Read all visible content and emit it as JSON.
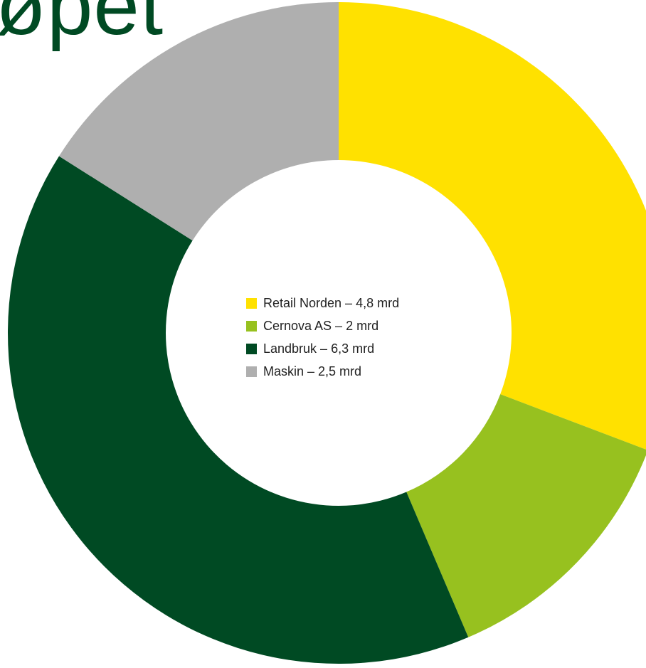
{
  "page": {
    "title_fragment": "øpet"
  },
  "chart_data": {
    "type": "pie",
    "style": "donut",
    "title": "",
    "unit": "mrd",
    "labels": [
      "Retail Norden",
      "Cernova AS",
      "Landbruk",
      "Maskin"
    ],
    "values": [
      4.8,
      2,
      6.3,
      2.5
    ],
    "colors": [
      "#ffe100",
      "#97c11f",
      "#004a23",
      "#afafaf"
    ],
    "legend": {
      "placement": "center",
      "entries": [
        "Retail Norden – 4,8 mrd",
        "Cernova AS – 2 mrd",
        "Landbruk – 6,3 mrd",
        "Maskin – 2,5 mrd"
      ]
    }
  }
}
